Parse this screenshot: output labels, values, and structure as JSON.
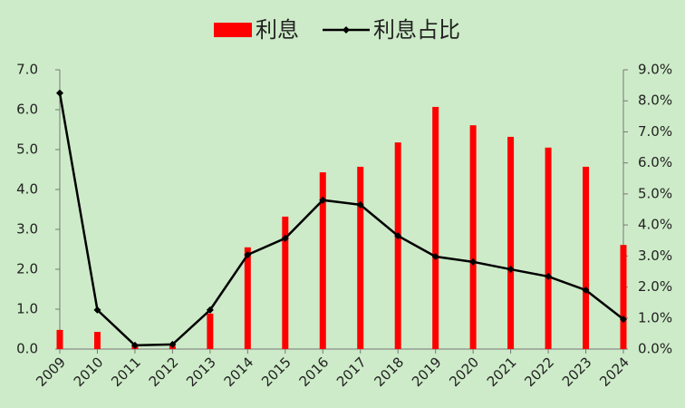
{
  "chart_data": {
    "type": "combo",
    "categories": [
      "2009",
      "2010",
      "2011",
      "2012",
      "2013",
      "2014",
      "2015",
      "2016",
      "2017",
      "2018",
      "2019",
      "2020",
      "2021",
      "2022",
      "2023",
      "2024"
    ],
    "series": [
      {
        "name": "利息",
        "type": "bar",
        "color": "#ff0000",
        "values": [
          0.48,
          0.43,
          0.08,
          0.08,
          0.89,
          2.55,
          3.32,
          4.43,
          4.57,
          5.18,
          6.07,
          5.61,
          5.32,
          5.05,
          4.57,
          2.61
        ]
      },
      {
        "name": "利息占比",
        "type": "line",
        "color": "#000000",
        "axis": "y2",
        "values": [
          8.25,
          1.26,
          0.12,
          0.15,
          1.26,
          3.04,
          3.57,
          4.8,
          4.65,
          3.65,
          2.98,
          2.81,
          2.57,
          2.34,
          1.9,
          0.96
        ]
      }
    ],
    "ylim": [
      0,
      7
    ],
    "yticks": [
      {
        "value": 0,
        "label": "0.0"
      },
      {
        "value": 1,
        "label": "1.0"
      },
      {
        "value": 2,
        "label": "2.0"
      },
      {
        "value": 3,
        "label": "3.0"
      },
      {
        "value": 4,
        "label": "4.0"
      },
      {
        "value": 5,
        "label": "5.0"
      },
      {
        "value": 6,
        "label": "6.0"
      },
      {
        "value": 7,
        "label": "7.0"
      }
    ],
    "y2lim": [
      0,
      9
    ],
    "y2ticks": [
      {
        "value": 0,
        "label": "0.0%"
      },
      {
        "value": 1,
        "label": "1.0%"
      },
      {
        "value": 2,
        "label": "2.0%"
      },
      {
        "value": 3,
        "label": "3.0%"
      },
      {
        "value": 4,
        "label": "4.0%"
      },
      {
        "value": 5,
        "label": "5.0%"
      },
      {
        "value": 6,
        "label": "6.0%"
      },
      {
        "value": 7,
        "label": "7.0%"
      },
      {
        "value": 8,
        "label": "8.0%"
      },
      {
        "value": 9,
        "label": "9.0%"
      }
    ],
    "grid": false,
    "legend": "top"
  }
}
